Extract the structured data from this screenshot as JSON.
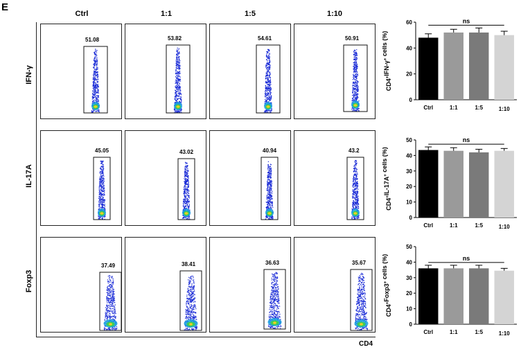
{
  "panel_label": "E",
  "columns": [
    "Ctrl",
    "1:1",
    "1:5",
    "1:10"
  ],
  "rows": [
    {
      "marker": "IFN-γ",
      "gate_values": [
        "51.08",
        "53.82",
        "54.61",
        "50.91"
      ]
    },
    {
      "marker": "IL-17A",
      "gate_values": [
        "45.05",
        "43.02",
        "40.94",
        "43.2"
      ]
    },
    {
      "marker": "Foxp3",
      "gate_values": [
        "37.49",
        "38.41",
        "36.63",
        "35.67"
      ]
    }
  ],
  "x_axis_title": "CD4",
  "colors": {
    "ctrl": "#000000",
    "r1": "#9a9a9a",
    "r5": "#7a7a7a",
    "r10": "#d4d4d4",
    "dot_blue": "#1a2bd6"
  },
  "chart_data": [
    {
      "type": "bar",
      "categories": [
        "Ctrl",
        "1:1",
        "1:5",
        "1:10"
      ],
      "values": [
        48,
        52,
        52,
        50
      ],
      "errors": [
        3,
        2.5,
        3.5,
        3
      ],
      "ylabel_pre": "CD4",
      "ylabel_sup": "+",
      "ylabel_mid": "IFN-γ",
      "ylabel_post": " cells (%)",
      "ylim": [
        0,
        60
      ],
      "yticks": [
        "0",
        "20",
        "40",
        "60"
      ],
      "significance": "ns"
    },
    {
      "type": "bar",
      "categories": [
        "Ctrl",
        "1:1",
        "1:5",
        "1:10"
      ],
      "values": [
        43.5,
        43,
        42,
        43
      ],
      "errors": [
        2,
        2,
        2,
        1.5
      ],
      "ylabel_pre": "CD4",
      "ylabel_sup": "+",
      "ylabel_mid": "IL-17A",
      "ylabel_post": " cells (%)",
      "ylim": [
        0,
        50
      ],
      "yticks": [
        "0",
        "10",
        "20",
        "30",
        "40",
        "50"
      ],
      "significance": "ns"
    },
    {
      "type": "bar",
      "categories": [
        "Ctrl",
        "1:1",
        "1:5",
        "1:10"
      ],
      "values": [
        36,
        36,
        36,
        34.5
      ],
      "errors": [
        2,
        2,
        2,
        1.5
      ],
      "ylabel_pre": "CD4",
      "ylabel_sup": "+",
      "ylabel_mid": "Foxp3",
      "ylabel_post": " cells (%)",
      "ylim": [
        0,
        50
      ],
      "yticks": [
        "0",
        "10",
        "20",
        "30",
        "40",
        "50"
      ],
      "significance": "ns"
    }
  ]
}
